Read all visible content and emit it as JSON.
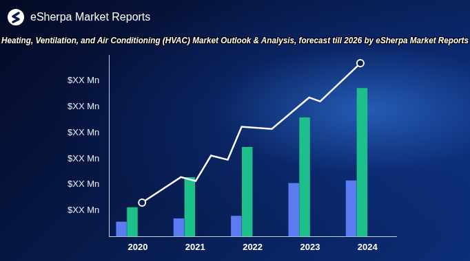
{
  "chart_data": {
    "type": "bar",
    "title": "Heating, Ventilation, and Air Conditioning (HVAC) Market Outlook & Analysis, forecast till 2026 by eSherpa Market Reports",
    "annotations": [
      "eSherpa Market Reports"
    ],
    "categories": [
      "2020",
      "2021",
      "2022",
      "2023",
      "2024"
    ],
    "series": [
      {
        "color": "#5b7bf0",
        "values": [
          0.57,
          0.7,
          0.8,
          2.06,
          2.16
        ]
      },
      {
        "color": "#1dbf8a",
        "values": [
          1.13,
          2.29,
          3.45,
          4.59,
          5.72
        ]
      },
      {
        "type": "line",
        "color": "#ffffff",
        "marker": "circle",
        "x": [
          2019.69,
          2020.5,
          2020.81,
          2021.13,
          2021.48,
          2021.77,
          2022.4,
          2023.18,
          2023.41,
          2024.25
        ],
        "values": [
          1.31,
          2.29,
          2.14,
          3.12,
          2.96,
          4.23,
          4.15,
          5.36,
          5.21,
          6.68
        ]
      }
    ],
    "ylim": [
      0,
      7
    ],
    "yticks": [
      {
        "value": 1,
        "label": "$XX Mn"
      },
      {
        "value": 2,
        "label": "$XX Mn"
      },
      {
        "value": 3,
        "label": "$XX Mn"
      },
      {
        "value": 4,
        "label": "$XX Mn"
      },
      {
        "value": 5,
        "label": "$XX Mn"
      },
      {
        "value": 6,
        "label": "$XX Mn"
      }
    ],
    "grid": false
  }
}
